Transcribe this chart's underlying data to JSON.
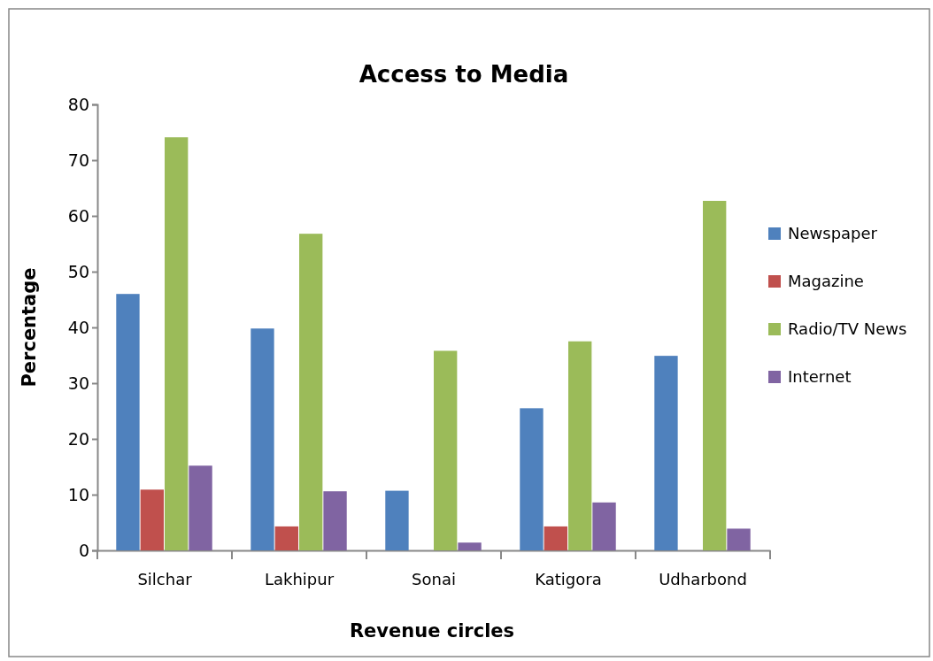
{
  "chart_data": {
    "type": "bar",
    "title": "Access to Media",
    "xlabel": "Revenue circles",
    "ylabel": "Percentage",
    "categories": [
      "Silchar",
      "Lakhipur",
      "Sonai",
      "Katigora",
      "Udharbond"
    ],
    "series": [
      {
        "name": "Newspaper",
        "color": "#4f81bd",
        "values": [
          46,
          39.8,
          10.7,
          25.5,
          34.9
        ]
      },
      {
        "name": "Magazine",
        "color": "#c0504d",
        "values": [
          10.9,
          4.3,
          0,
          4.3,
          0
        ]
      },
      {
        "name": "Radio/TV News",
        "color": "#9bbb59",
        "values": [
          74.1,
          56.8,
          35.8,
          37.5,
          62.7
        ]
      },
      {
        "name": "Internet",
        "color": "#8064a2",
        "values": [
          15.2,
          10.6,
          1.4,
          8.6,
          3.9
        ]
      }
    ],
    "ylim": [
      0,
      80
    ],
    "yticks": [
      0,
      10,
      20,
      30,
      40,
      50,
      60,
      70,
      80
    ],
    "grid": false,
    "legend": "right"
  }
}
